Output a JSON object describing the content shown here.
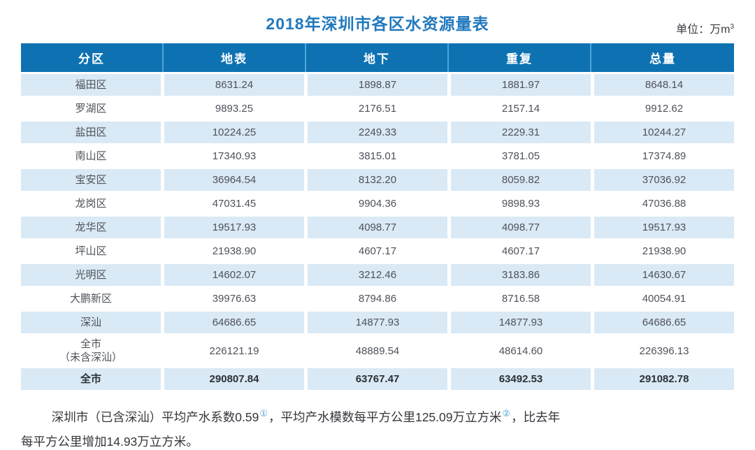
{
  "title": "2018年深圳市各区水资源量表",
  "unit": {
    "prefix": "单位：万m",
    "sup": "3"
  },
  "table": {
    "columns": [
      "分区",
      "地表",
      "地下",
      "重复",
      "总量"
    ],
    "rows": [
      {
        "name": "福田区",
        "values": [
          "8631.24",
          "1898.87",
          "1881.97",
          "8648.14"
        ]
      },
      {
        "name": "罗湖区",
        "values": [
          "9893.25",
          "2176.51",
          "2157.14",
          "9912.62"
        ]
      },
      {
        "name": "盐田区",
        "values": [
          "10224.25",
          "2249.33",
          "2229.31",
          "10244.27"
        ]
      },
      {
        "name": "南山区",
        "values": [
          "17340.93",
          "3815.01",
          "3781.05",
          "17374.89"
        ]
      },
      {
        "name": "宝安区",
        "values": [
          "36964.54",
          "8132.20",
          "8059.82",
          "37036.92"
        ]
      },
      {
        "name": "龙岗区",
        "values": [
          "47031.45",
          "9904.36",
          "9898.93",
          "47036.88"
        ]
      },
      {
        "name": "龙华区",
        "values": [
          "19517.93",
          "4098.77",
          "4098.77",
          "19517.93"
        ]
      },
      {
        "name": "坪山区",
        "values": [
          "21938.90",
          "4607.17",
          "4607.17",
          "21938.90"
        ]
      },
      {
        "name": "光明区",
        "values": [
          "14602.07",
          "3212.46",
          "3183.86",
          "14630.67"
        ]
      },
      {
        "name": "大鹏新区",
        "values": [
          "39976.63",
          "8794.86",
          "8716.58",
          "40054.91"
        ]
      },
      {
        "name": "深汕",
        "values": [
          "64686.65",
          "14877.93",
          "14877.93",
          "64686.65"
        ]
      },
      {
        "name": "全市\n（未含深汕）",
        "values": [
          "226121.19",
          "48889.54",
          "48614.60",
          "226396.13"
        ]
      },
      {
        "name": "全市",
        "values": [
          "290807.84",
          "63767.47",
          "63492.53",
          "291082.78"
        ]
      }
    ]
  },
  "footnote": {
    "line1_seg1": "深圳市（已含深汕）平均产水系数0.59",
    "line1_ref1": "①",
    "line1_seg2": "，平均产水模数每平方公里125.09万立方米",
    "line1_ref2": "②",
    "line1_seg3": "，比去年",
    "line2": "每平方公里增加14.93万立方米。"
  },
  "colors": {
    "header_bg": "#0e72b2",
    "header_separator": "#4ea5d9",
    "alt_row_bg": "#d9e9f5",
    "title_blue": "#2079bd",
    "footnote_ref_blue": "#4aa0d8"
  },
  "chart_data": {
    "type": "table",
    "title": "2018年深圳市各区水资源量表",
    "unit": "万m³",
    "columns": [
      "分区",
      "地表",
      "地下",
      "重复",
      "总量"
    ],
    "rows": [
      [
        "福田区",
        8631.24,
        1898.87,
        1881.97,
        8648.14
      ],
      [
        "罗湖区",
        9893.25,
        2176.51,
        2157.14,
        9912.62
      ],
      [
        "盐田区",
        10224.25,
        2249.33,
        2229.31,
        10244.27
      ],
      [
        "南山区",
        17340.93,
        3815.01,
        3781.05,
        17374.89
      ],
      [
        "宝安区",
        36964.54,
        8132.2,
        8059.82,
        37036.92
      ],
      [
        "龙岗区",
        47031.45,
        9904.36,
        9898.93,
        47036.88
      ],
      [
        "龙华区",
        19517.93,
        4098.77,
        4098.77,
        19517.93
      ],
      [
        "坪山区",
        21938.9,
        4607.17,
        4607.17,
        21938.9
      ],
      [
        "光明区",
        14602.07,
        3212.46,
        3183.86,
        14630.67
      ],
      [
        "大鹏新区",
        39976.63,
        8794.86,
        8716.58,
        40054.91
      ],
      [
        "深汕",
        64686.65,
        14877.93,
        14877.93,
        64686.65
      ],
      [
        "全市（未含深汕）",
        226121.19,
        48889.54,
        48614.6,
        226396.13
      ],
      [
        "全市",
        290807.84,
        63767.47,
        63492.53,
        291082.78
      ]
    ]
  }
}
